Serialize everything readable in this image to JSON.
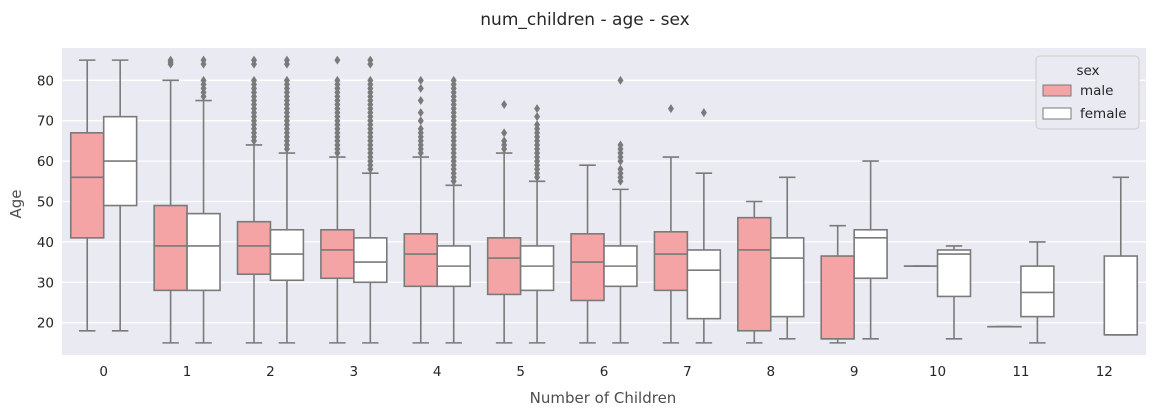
{
  "chart_data": {
    "type": "box",
    "title": "num_children - age - sex",
    "xlabel": "Number of Children",
    "ylabel": "Age",
    "categories": [
      "0",
      "1",
      "2",
      "3",
      "4",
      "5",
      "6",
      "7",
      "8",
      "9",
      "10",
      "11",
      "12"
    ],
    "yticks": [
      20,
      30,
      40,
      50,
      60,
      70,
      80
    ],
    "ylim": [
      12,
      88
    ],
    "grid": true,
    "legend": {
      "title": "sex",
      "placement": "top-right"
    },
    "series": [
      {
        "name": "male",
        "color": "#f4a4a4",
        "boxes": [
          {
            "cat": "0",
            "whislo": 18,
            "q1": 41,
            "med": 56,
            "q3": 67,
            "whishi": 85,
            "fliers": []
          },
          {
            "cat": "1",
            "whislo": 15,
            "q1": 28,
            "med": 39,
            "q3": 49,
            "whishi": 80,
            "fliers": [
              85,
              84.5,
              84
            ]
          },
          {
            "cat": "2",
            "whislo": 15,
            "q1": 32,
            "med": 39,
            "q3": 45,
            "whishi": 64,
            "fliers": [
              65,
              66,
              67,
              68,
              69,
              70,
              71,
              72,
              73,
              74,
              75,
              76,
              77,
              78,
              79,
              80,
              84,
              85
            ]
          },
          {
            "cat": "3",
            "whislo": 15,
            "q1": 31,
            "med": 38,
            "q3": 43,
            "whishi": 61,
            "fliers": [
              62,
              63,
              64,
              65,
              66,
              67,
              68,
              69,
              70,
              71,
              72,
              73,
              74,
              75,
              76,
              77,
              78,
              79,
              80,
              85
            ]
          },
          {
            "cat": "4",
            "whislo": 15,
            "q1": 29,
            "med": 37,
            "q3": 42,
            "whishi": 61,
            "fliers": [
              62,
              63,
              64,
              65,
              66,
              67,
              68,
              70,
              72,
              75,
              78,
              80
            ]
          },
          {
            "cat": "5",
            "whislo": 15,
            "q1": 27,
            "med": 36,
            "q3": 41,
            "whishi": 62,
            "fliers": [
              63,
              64,
              65,
              67,
              74
            ]
          },
          {
            "cat": "6",
            "whislo": 15,
            "q1": 25.5,
            "med": 35,
            "q3": 42,
            "whishi": 59,
            "fliers": []
          },
          {
            "cat": "7",
            "whislo": 15,
            "q1": 28,
            "med": 37,
            "q3": 42.5,
            "whishi": 61,
            "fliers": [
              73
            ]
          },
          {
            "cat": "8",
            "whislo": 15,
            "q1": 18,
            "med": 38,
            "q3": 46,
            "whishi": 50,
            "fliers": []
          },
          {
            "cat": "9",
            "whislo": 15,
            "q1": 16,
            "med": 16,
            "q3": 36.5,
            "whishi": 44,
            "fliers": []
          },
          {
            "cat": "10",
            "whislo": 34,
            "q1": 34,
            "med": 34,
            "q3": 34,
            "whishi": 34,
            "fliers": []
          },
          {
            "cat": "11",
            "whislo": 19,
            "q1": 19,
            "med": 19,
            "q3": 19,
            "whishi": 19,
            "fliers": []
          }
        ]
      },
      {
        "name": "female",
        "color": "#ffffff",
        "boxes": [
          {
            "cat": "0",
            "whislo": 18,
            "q1": 49,
            "med": 60,
            "q3": 71,
            "whishi": 85,
            "fliers": []
          },
          {
            "cat": "1",
            "whislo": 15,
            "q1": 28,
            "med": 39,
            "q3": 47,
            "whishi": 75,
            "fliers": [
              76,
              77,
              78,
              79,
              80,
              84,
              85
            ]
          },
          {
            "cat": "2",
            "whislo": 15,
            "q1": 30.5,
            "med": 37,
            "q3": 43,
            "whishi": 62,
            "fliers": [
              63,
              64,
              65,
              66,
              67,
              68,
              69,
              70,
              71,
              72,
              73,
              74,
              75,
              76,
              77,
              78,
              79,
              80,
              84,
              85
            ]
          },
          {
            "cat": "3",
            "whislo": 15,
            "q1": 30,
            "med": 35,
            "q3": 41,
            "whishi": 57,
            "fliers": [
              58,
              59,
              60,
              61,
              62,
              63,
              64,
              65,
              66,
              67,
              68,
              69,
              70,
              71,
              72,
              73,
              74,
              75,
              76,
              77,
              78,
              79,
              80,
              84,
              85
            ]
          },
          {
            "cat": "4",
            "whislo": 15,
            "q1": 29,
            "med": 34,
            "q3": 39,
            "whishi": 54,
            "fliers": [
              55,
              56,
              57,
              58,
              59,
              60,
              61,
              62,
              63,
              64,
              65,
              66,
              67,
              68,
              69,
              70,
              71,
              72,
              73,
              74,
              75,
              76,
              77,
              78,
              79,
              80
            ]
          },
          {
            "cat": "5",
            "whislo": 15,
            "q1": 28,
            "med": 34,
            "q3": 39,
            "whishi": 55,
            "fliers": [
              56,
              57,
              58,
              59,
              60,
              61,
              62,
              63,
              64,
              65,
              66,
              67,
              68,
              69,
              71,
              73
            ]
          },
          {
            "cat": "6",
            "whislo": 15,
            "q1": 29,
            "med": 34,
            "q3": 39,
            "whishi": 53,
            "fliers": [
              55,
              56,
              57,
              58,
              60,
              61,
              62,
              63,
              64,
              80
            ]
          },
          {
            "cat": "7",
            "whislo": 15,
            "q1": 21,
            "med": 33,
            "q3": 38,
            "whishi": 57,
            "fliers": [
              72
            ]
          },
          {
            "cat": "8",
            "whislo": 16,
            "q1": 21.5,
            "med": 36,
            "q3": 41,
            "whishi": 56,
            "fliers": []
          },
          {
            "cat": "9",
            "whislo": 16,
            "q1": 31,
            "med": 41,
            "q3": 43,
            "whishi": 60,
            "fliers": []
          },
          {
            "cat": "10",
            "whislo": 16,
            "q1": 26.5,
            "med": 37,
            "q3": 38,
            "whishi": 39,
            "fliers": []
          },
          {
            "cat": "11",
            "whislo": 15,
            "q1": 21.5,
            "med": 27.5,
            "q3": 34,
            "whishi": 40,
            "fliers": []
          },
          {
            "cat": "12",
            "whislo": 17,
            "q1": 17,
            "med": 17,
            "q3": 36.5,
            "whishi": 56,
            "fliers": []
          }
        ]
      }
    ]
  }
}
